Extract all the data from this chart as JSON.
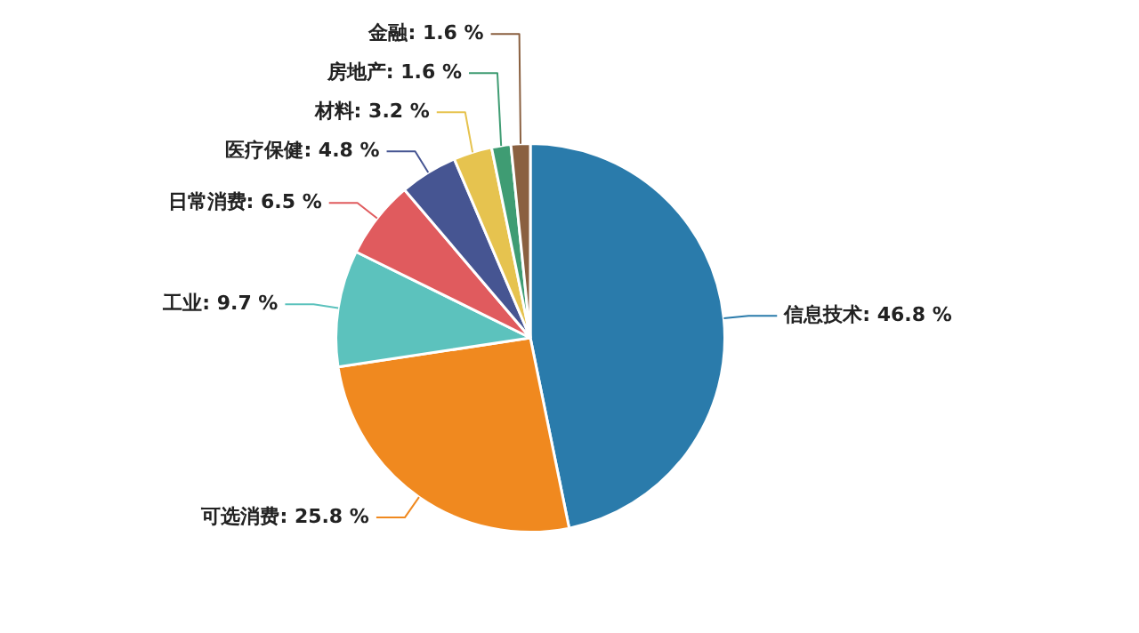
{
  "chart_data": {
    "type": "pie",
    "categories": [
      "信息技术",
      "可选消费",
      "工业",
      "日常消费",
      "医疗保健",
      "材料",
      "房地产",
      "金融"
    ],
    "values": [
      46.8,
      25.8,
      9.7,
      6.5,
      4.8,
      3.2,
      1.6,
      1.6
    ],
    "value_labels": [
      "46.8 %",
      "25.8 %",
      "9.7 %",
      "6.5 %",
      "4.8 %",
      "3.2 %",
      "1.6 %",
      "1.6 %"
    ],
    "colors": [
      "#2a7bab",
      "#f0891f",
      "#5cc2bd",
      "#e05b5e",
      "#465592",
      "#e6c34f",
      "#3f9c73",
      "#8a6040"
    ],
    "legend": false
  }
}
